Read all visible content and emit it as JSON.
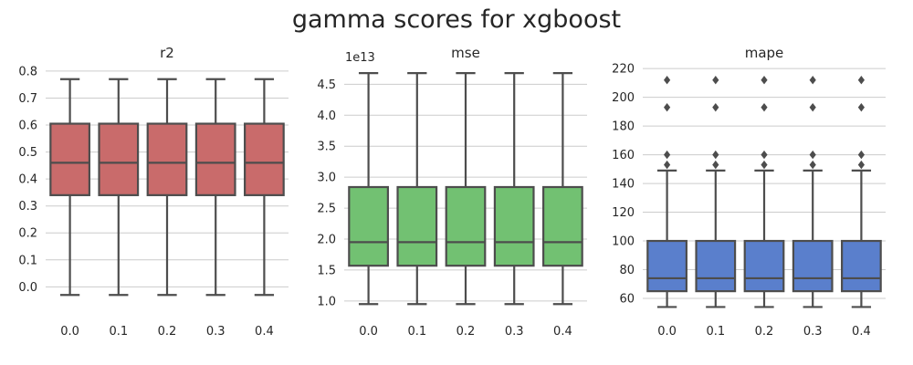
{
  "figure": {
    "title": "gamma scores for xgboost"
  },
  "chart_data": [
    {
      "type": "box",
      "title": "r2",
      "xlabel": "",
      "ylabel": "",
      "categories": [
        "0.0",
        "0.1",
        "0.2",
        "0.3",
        "0.4"
      ],
      "color": "#c96b6b",
      "ylim": [
        -0.08,
        0.82
      ],
      "yticks": [
        0.0,
        0.1,
        0.2,
        0.3,
        0.4,
        0.5,
        0.6,
        0.7,
        0.8
      ],
      "ytick_labels": [
        "0.0",
        "0.1",
        "0.2",
        "0.3",
        "0.4",
        "0.5",
        "0.6",
        "0.7",
        "0.8"
      ],
      "offset_label": "",
      "grid": true,
      "boxes": [
        {
          "whislo": -0.03,
          "q1": 0.34,
          "med": 0.46,
          "q3": 0.605,
          "whishi": 0.77,
          "fliers": []
        },
        {
          "whislo": -0.03,
          "q1": 0.34,
          "med": 0.46,
          "q3": 0.605,
          "whishi": 0.77,
          "fliers": []
        },
        {
          "whislo": -0.03,
          "q1": 0.34,
          "med": 0.46,
          "q3": 0.605,
          "whishi": 0.77,
          "fliers": []
        },
        {
          "whislo": -0.03,
          "q1": 0.34,
          "med": 0.46,
          "q3": 0.605,
          "whishi": 0.77,
          "fliers": []
        },
        {
          "whislo": -0.03,
          "q1": 0.34,
          "med": 0.46,
          "q3": 0.605,
          "whishi": 0.77,
          "fliers": []
        }
      ]
    },
    {
      "type": "box",
      "title": "mse",
      "xlabel": "",
      "ylabel": "",
      "categories": [
        "0.0",
        "0.1",
        "0.2",
        "0.3",
        "0.4"
      ],
      "color": "#72c172",
      "ylim": [
        0.88,
        4.8
      ],
      "yticks": [
        1.0,
        1.5,
        2.0,
        2.5,
        3.0,
        3.5,
        4.0,
        4.5
      ],
      "ytick_labels": [
        "1.0",
        "1.5",
        "2.0",
        "2.5",
        "3.0",
        "3.5",
        "4.0",
        "4.5"
      ],
      "offset_label": "1e13",
      "grid": true,
      "boxes": [
        {
          "whislo": 0.95,
          "q1": 1.57,
          "med": 1.95,
          "q3": 2.84,
          "whishi": 4.68,
          "fliers": []
        },
        {
          "whislo": 0.95,
          "q1": 1.57,
          "med": 1.95,
          "q3": 2.84,
          "whishi": 4.68,
          "fliers": []
        },
        {
          "whislo": 0.95,
          "q1": 1.57,
          "med": 1.95,
          "q3": 2.84,
          "whishi": 4.68,
          "fliers": []
        },
        {
          "whislo": 0.95,
          "q1": 1.57,
          "med": 1.95,
          "q3": 2.84,
          "whishi": 4.68,
          "fliers": []
        },
        {
          "whislo": 0.95,
          "q1": 1.57,
          "med": 1.95,
          "q3": 2.84,
          "whishi": 4.68,
          "fliers": []
        }
      ]
    },
    {
      "type": "box",
      "title": "mape",
      "xlabel": "",
      "ylabel": "",
      "categories": [
        "0.0",
        "0.1",
        "0.2",
        "0.3",
        "0.4"
      ],
      "color": "#5a7fcc",
      "ylim": [
        53,
        222
      ],
      "yticks": [
        60,
        80,
        100,
        120,
        140,
        160,
        180,
        200,
        220
      ],
      "ytick_labels": [
        "60",
        "80",
        "100",
        "120",
        "140",
        "160",
        "180",
        "200",
        "220"
      ],
      "offset_label": "",
      "grid": true,
      "boxes": [
        {
          "whislo": 54,
          "q1": 65,
          "med": 74,
          "q3": 100,
          "whishi": 149,
          "fliers": [
            153,
            160,
            193,
            212
          ]
        },
        {
          "whislo": 54,
          "q1": 65,
          "med": 74,
          "q3": 100,
          "whishi": 149,
          "fliers": [
            153,
            160,
            193,
            212
          ]
        },
        {
          "whislo": 54,
          "q1": 65,
          "med": 74,
          "q3": 100,
          "whishi": 149,
          "fliers": [
            153,
            160,
            193,
            212
          ]
        },
        {
          "whislo": 54,
          "q1": 65,
          "med": 74,
          "q3": 100,
          "whishi": 149,
          "fliers": [
            153,
            160,
            193,
            212
          ]
        },
        {
          "whislo": 54,
          "q1": 65,
          "med": 74,
          "q3": 100,
          "whishi": 149,
          "fliers": [
            153,
            160,
            193,
            212
          ]
        }
      ]
    }
  ]
}
